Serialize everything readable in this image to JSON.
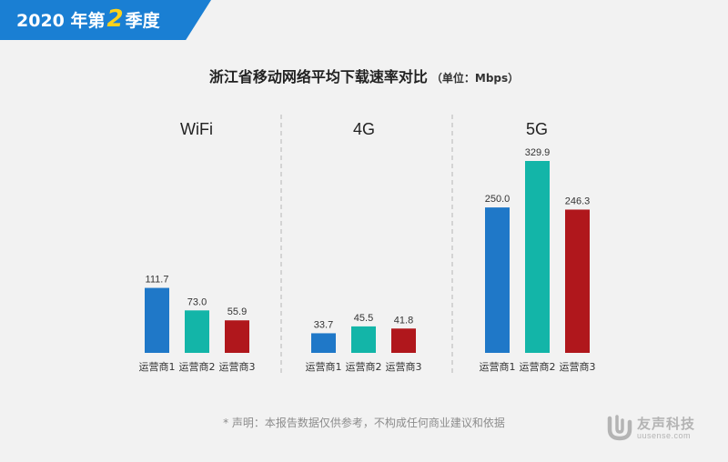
{
  "header": {
    "year_text": "2020 年第",
    "quarter_num": "2",
    "season_text": "季度"
  },
  "chart_data": {
    "type": "bar",
    "title": "浙江省移动网络平均下载速率对比",
    "unit_note": "（单位：Mbps）",
    "groups": [
      {
        "name": "WiFi",
        "categories": [
          "运营商1",
          "运营商2",
          "运营商3"
        ],
        "values": [
          111.7,
          73.0,
          55.9
        ]
      },
      {
        "name": "4G",
        "categories": [
          "运营商1",
          "运营商2",
          "运营商3"
        ],
        "values": [
          33.7,
          45.5,
          41.8
        ]
      },
      {
        "name": "5G",
        "categories": [
          "运营商1",
          "运营商2",
          "运营商3"
        ],
        "values": [
          250.0,
          329.9,
          246.3
        ]
      }
    ],
    "series_colors": [
      "#1f78c8",
      "#13b5a8",
      "#b0171c"
    ],
    "ylim": [
      0,
      329.9
    ],
    "grid": false,
    "legend": "none"
  },
  "footer": {
    "disclaimer": "* 声明：本报告数据仅供参考，不构成任何商业建议和依据",
    "logo_name": "友声科技",
    "logo_url": "uusense.com"
  }
}
